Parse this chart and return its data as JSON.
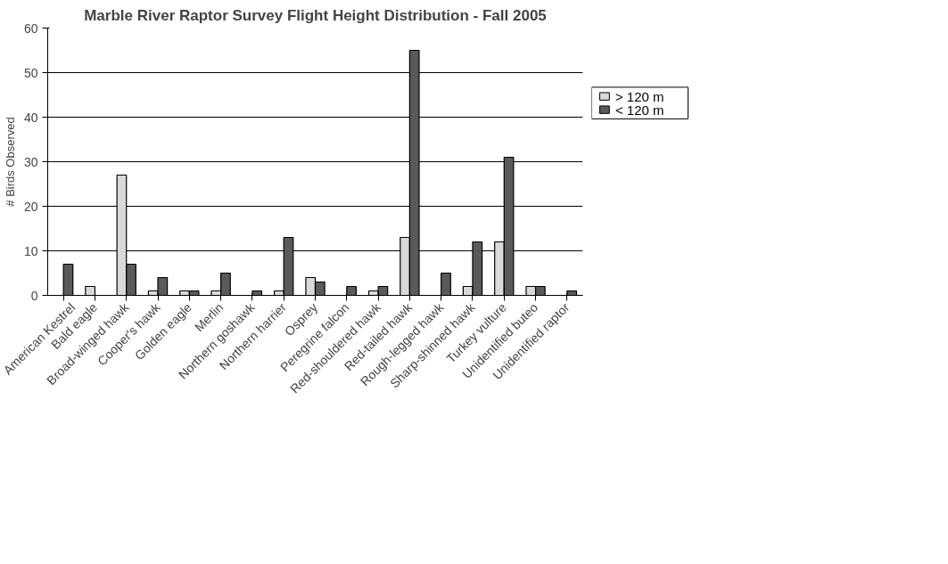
{
  "chart_data": {
    "type": "bar",
    "title": "Marble River Raptor Survey Flight Height Distribution - Fall 2005",
    "ylabel": "# Birds Observed",
    "categories": [
      "American Kestrel",
      "Bald eagle",
      "Broad-winged hawk",
      "Cooper's hawk",
      "Golden eagle",
      "Merlin",
      "Northern goshawk",
      "Northern harrier",
      "Osprey",
      "Peregrine falcon",
      "Red-shouldered hawk",
      "Red-tailed hawk",
      "Rough-legged hawk",
      "Sharp-shinned hawk",
      "Turkey vulture",
      "Unidentified buteo",
      "Unidentified raptor"
    ],
    "series": [
      {
        "name": "> 120 m",
        "color": "#d9d9d9",
        "values": [
          0,
          2,
          27,
          1,
          1,
          1,
          0,
          1,
          4,
          0,
          1,
          13,
          0,
          2,
          12,
          2,
          0
        ]
      },
      {
        "name": "< 120 m",
        "color": "#5a5a5a",
        "values": [
          7,
          0,
          7,
          4,
          1,
          5,
          1,
          13,
          3,
          2,
          2,
          55,
          5,
          12,
          31,
          2,
          1
        ]
      }
    ],
    "ylim": [
      0,
      60
    ],
    "yticks": [
      0,
      10,
      20,
      30,
      40,
      50,
      60
    ],
    "grid": "y",
    "legend": "right"
  }
}
